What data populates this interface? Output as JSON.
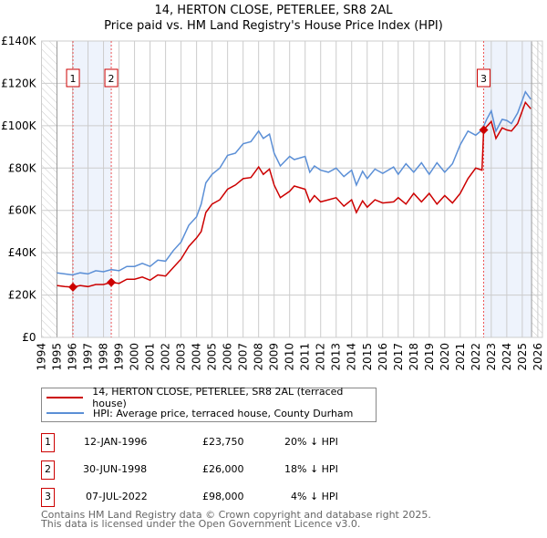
{
  "chart_data": {
    "type": "line",
    "title": "14, HERTON CLOSE, PETERLEE, SR8 2AL",
    "subtitle": "Price paid vs. HM Land Registry's House Price Index (HPI)",
    "xlim": [
      1994,
      2026.3
    ],
    "ylim": [
      0,
      140000
    ],
    "xticks": [
      "1994",
      "1995",
      "1996",
      "1997",
      "1998",
      "1999",
      "2000",
      "2001",
      "2002",
      "2003",
      "2004",
      "2005",
      "2006",
      "2007",
      "2008",
      "2009",
      "2010",
      "2011",
      "2012",
      "2013",
      "2014",
      "2015",
      "2016",
      "2017",
      "2018",
      "2019",
      "2020",
      "2021",
      "2022",
      "2023",
      "2024",
      "2025",
      "2026"
    ],
    "yticks": [
      {
        "v": 0,
        "label": "£0"
      },
      {
        "v": 20000,
        "label": "£20K"
      },
      {
        "v": 40000,
        "label": "£40K"
      },
      {
        "v": 60000,
        "label": "£60K"
      },
      {
        "v": 80000,
        "label": "£80K"
      },
      {
        "v": 100000,
        "label": "£100K"
      },
      {
        "v": 120000,
        "label": "£120K"
      },
      {
        "v": 140000,
        "label": "£140K"
      }
    ],
    "grid": true,
    "hatched_ranges": [
      [
        1994,
        1995
      ],
      [
        2025.6,
        2026.3
      ]
    ],
    "shaded_ranges": [
      [
        1996.03,
        1998.5
      ],
      [
        2022.51,
        2025.6
      ]
    ],
    "series": [
      {
        "name": "14, HERTON CLOSE, PETERLEE, SR8 2AL (terraced house)",
        "color": "#cc0000",
        "x": [
          1995,
          1995.5,
          1996.03,
          1996.5,
          1997,
          1997.5,
          1998,
          1998.5,
          1999,
          1999.5,
          2000,
          2000.5,
          2001,
          2001.5,
          2002,
          2002.5,
          2003,
          2003.5,
          2004,
          2004.3,
          2004.6,
          2005,
          2005.5,
          2006,
          2006.5,
          2007,
          2007.5,
          2008,
          2008.3,
          2008.7,
          2009,
          2009.4,
          2010,
          2010.3,
          2011,
          2011.3,
          2011.6,
          2012,
          2012.5,
          2013,
          2013.5,
          2014,
          2014.3,
          2014.7,
          2015,
          2015.5,
          2016,
          2016.7,
          2017,
          2017.5,
          2018,
          2018.5,
          2019,
          2019.5,
          2020,
          2020.5,
          2021,
          2021.5,
          2022,
          2022.4,
          2022.51,
          2023,
          2023.3,
          2023.7,
          2024,
          2024.3,
          2024.7,
          2025.2,
          2025.55
        ],
        "y": [
          24500,
          24000,
          23750,
          24500,
          24000,
          25000,
          25000,
          26000,
          25500,
          27500,
          27500,
          28500,
          27000,
          29500,
          29000,
          33000,
          37000,
          43000,
          47000,
          50000,
          59000,
          63000,
          65000,
          70000,
          72000,
          75000,
          75500,
          80500,
          77000,
          79500,
          72000,
          66000,
          69000,
          71500,
          70000,
          64000,
          67000,
          64000,
          65000,
          66000,
          62000,
          65000,
          59000,
          64500,
          61500,
          65000,
          63500,
          64000,
          66000,
          63000,
          68000,
          64000,
          68000,
          63000,
          67000,
          63500,
          68000,
          75000,
          80000,
          79000,
          98000,
          102000,
          94000,
          99000,
          98000,
          97500,
          101000,
          111000,
          108000
        ]
      },
      {
        "name": "HPI: Average price, terraced house, County Durham",
        "color": "#5b8fd6",
        "x": [
          1995,
          1995.5,
          1996,
          1996.5,
          1997,
          1997.5,
          1998,
          1998.5,
          1999,
          1999.5,
          2000,
          2000.5,
          2001,
          2001.5,
          2002,
          2002.5,
          2003,
          2003.5,
          2004,
          2004.3,
          2004.6,
          2005,
          2005.5,
          2006,
          2006.5,
          2007,
          2007.5,
          2008,
          2008.3,
          2008.7,
          2009,
          2009.4,
          2010,
          2010.3,
          2011,
          2011.3,
          2011.6,
          2012,
          2012.5,
          2013,
          2013.5,
          2014,
          2014.3,
          2014.7,
          2015,
          2015.5,
          2016,
          2016.7,
          2017,
          2017.5,
          2018,
          2018.5,
          2019,
          2019.5,
          2020,
          2020.5,
          2021,
          2021.5,
          2022,
          2022.4,
          2022.7,
          2023,
          2023.3,
          2023.7,
          2024,
          2024.3,
          2024.7,
          2025.2,
          2025.55
        ],
        "y": [
          30500,
          30000,
          29500,
          30500,
          30000,
          31500,
          31000,
          32000,
          31500,
          33500,
          33500,
          35000,
          33500,
          36500,
          36000,
          41000,
          45000,
          53000,
          57000,
          63000,
          73000,
          77000,
          80000,
          86000,
          87000,
          91500,
          92500,
          97500,
          94000,
          96000,
          87000,
          81000,
          85500,
          84000,
          85500,
          78000,
          81000,
          79000,
          78000,
          80000,
          76000,
          79000,
          72000,
          78500,
          75000,
          79500,
          77500,
          80500,
          77000,
          82000,
          78000,
          82500,
          77000,
          82500,
          78000,
          82000,
          91000,
          97500,
          95500,
          98000,
          103000,
          107000,
          97500,
          103000,
          102500,
          101000,
          106000,
          116000,
          112500
        ]
      }
    ],
    "sales": [
      {
        "num": "1",
        "x": 1996.03,
        "y": 23750
      },
      {
        "num": "2",
        "x": 1998.5,
        "y": 26000
      },
      {
        "num": "3",
        "x": 2022.51,
        "y": 98000
      }
    ]
  },
  "legend": {
    "item1": "14, HERTON CLOSE, PETERLEE, SR8 2AL (terraced house)",
    "item2": "HPI: Average price, terraced house, County Durham"
  },
  "transactions": [
    {
      "num": "1",
      "date": "12-JAN-1996",
      "price": "£23,750",
      "hpi": "20% ↓ HPI"
    },
    {
      "num": "2",
      "date": "30-JUN-1998",
      "price": "£26,000",
      "hpi": "18% ↓ HPI"
    },
    {
      "num": "3",
      "date": "07-JUL-2022",
      "price": "£98,000",
      "hpi": "4% ↓ HPI"
    }
  ],
  "footer": {
    "line1": "Contains HM Land Registry data © Crown copyright and database right 2025.",
    "line2": "This data is licensed under the Open Government Licence v3.0."
  }
}
